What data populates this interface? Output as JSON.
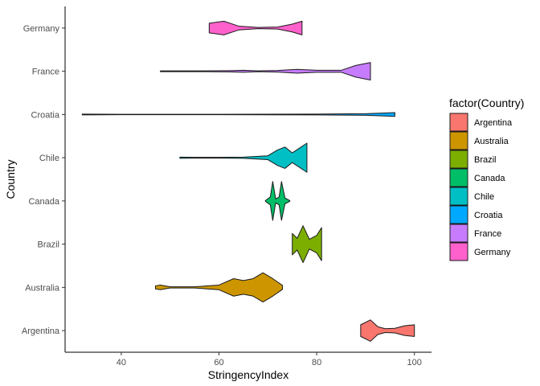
{
  "chart_data": {
    "type": "violin",
    "title": "",
    "xlabel": "StringencyIndex",
    "ylabel": "Country",
    "xlim": [
      28.5,
      103.5
    ],
    "xticks": [
      40,
      60,
      80,
      100
    ],
    "grid": false,
    "legend_title": "factor(Country)",
    "legend_position": "right",
    "categories": [
      "Argentina",
      "Australia",
      "Brazil",
      "Canada",
      "Chile",
      "Croatia",
      "France",
      "Germany"
    ],
    "series": [
      {
        "name": "Argentina",
        "color": "#F8766D",
        "profile": [
          [
            89,
            0.3
          ],
          [
            91,
            0.55
          ],
          [
            92.5,
            0.2
          ],
          [
            94,
            0.1
          ],
          [
            96,
            0.12
          ],
          [
            98,
            0.25
          ],
          [
            100,
            0.3
          ]
        ]
      },
      {
        "name": "Australia",
        "color": "#CD9600",
        "profile": [
          [
            47,
            0.08
          ],
          [
            48,
            0.12
          ],
          [
            50,
            0.03
          ],
          [
            55,
            0.03
          ],
          [
            60,
            0.12
          ],
          [
            63,
            0.45
          ],
          [
            65,
            0.35
          ],
          [
            67,
            0.45
          ],
          [
            69,
            0.75
          ],
          [
            71,
            0.45
          ],
          [
            73,
            0.1
          ]
        ]
      },
      {
        "name": "Brazil",
        "color": "#7CAE00",
        "profile": [
          [
            75,
            0.55
          ],
          [
            76,
            0.3
          ],
          [
            77.2,
            0.95
          ],
          [
            78.5,
            0.25
          ],
          [
            80,
            0.45
          ],
          [
            81,
            0.85
          ]
        ]
      },
      {
        "name": "Canada",
        "color": "#00BE67",
        "profile": [
          [
            69.5,
            0.02
          ],
          [
            70.5,
            0.2
          ],
          [
            71,
            1.0
          ],
          [
            71.6,
            0.1
          ],
          [
            72.3,
            0.2
          ],
          [
            72.8,
            1.0
          ],
          [
            73.5,
            0.15
          ],
          [
            74.5,
            0.02
          ]
        ]
      },
      {
        "name": "Chile",
        "color": "#00BFC4",
        "profile": [
          [
            52,
            0.03
          ],
          [
            55,
            0.02
          ],
          [
            60,
            0.02
          ],
          [
            65,
            0.03
          ],
          [
            70,
            0.1
          ],
          [
            72,
            0.4
          ],
          [
            73.5,
            0.55
          ],
          [
            75,
            0.25
          ],
          [
            76.5,
            0.5
          ],
          [
            78,
            0.75
          ]
        ]
      },
      {
        "name": "Croatia",
        "color": "#00A9FF",
        "profile": [
          [
            32,
            0.02
          ],
          [
            40,
            0.01
          ],
          [
            60,
            0.01
          ],
          [
            80,
            0.02
          ],
          [
            90,
            0.04
          ],
          [
            94,
            0.08
          ],
          [
            96,
            0.1
          ]
        ]
      },
      {
        "name": "France",
        "color": "#C77CFF",
        "profile": [
          [
            48,
            0.02
          ],
          [
            55,
            0.02
          ],
          [
            62,
            0.03
          ],
          [
            65,
            0.05
          ],
          [
            68,
            0.02
          ],
          [
            72,
            0.04
          ],
          [
            76,
            0.1
          ],
          [
            80,
            0.05
          ],
          [
            85,
            0.05
          ],
          [
            88,
            0.3
          ],
          [
            91,
            0.45
          ]
        ]
      },
      {
        "name": "Germany",
        "color": "#FF61CC",
        "profile": [
          [
            58,
            0.25
          ],
          [
            61,
            0.35
          ],
          [
            64,
            0.1
          ],
          [
            68,
            0.03
          ],
          [
            72,
            0.05
          ],
          [
            75,
            0.2
          ],
          [
            77,
            0.35
          ]
        ]
      }
    ]
  }
}
